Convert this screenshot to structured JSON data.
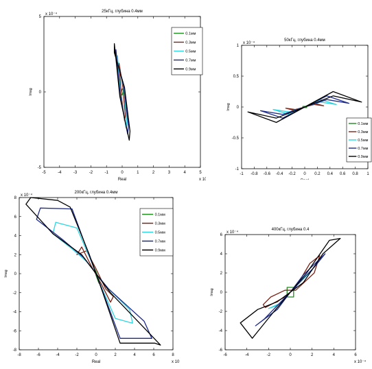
{
  "page": {
    "background": "#ffffff"
  },
  "chart_data": [
    {
      "type": "line",
      "title": "25кГц, глубина 0.4мм",
      "xlabel": "Real",
      "ylabel": "Imag",
      "x_exponent": "x 10⁻⁴",
      "y_exponent": "x 10⁻⁴",
      "xlim": [
        -5,
        5
      ],
      "ylim": [
        -5,
        5
      ],
      "xticks": [
        -5,
        -4,
        -3,
        -2,
        -1,
        0,
        1,
        2,
        3,
        4,
        5
      ],
      "yticks": [
        -5,
        0,
        5
      ],
      "legend_position": "top-right",
      "series": [
        {
          "name": "0.1мм",
          "color": "#1e8a1e",
          "x": [
            0,
            0.1,
            0,
            -0.1,
            0
          ],
          "y": [
            0.2,
            0.15,
            -0.2,
            -0.15,
            0.2
          ],
          "closed": true
        },
        {
          "name": "0.3мм",
          "color": "#7a2418",
          "x": [
            -0.15,
            0.05,
            0.2,
            0.15,
            -0.05,
            -0.2
          ],
          "y": [
            1.6,
            0.3,
            -1.6,
            -1.9,
            -0.3,
            1.9
          ],
          "closed": true
        },
        {
          "name": "0.5мм",
          "color": "#2ed4e0",
          "x": [
            -0.3,
            0.1,
            0.3,
            0.25,
            -0.1,
            -0.3
          ],
          "y": [
            2.0,
            0.3,
            -2.0,
            -2.4,
            -0.3,
            2.4
          ],
          "closed": true
        },
        {
          "name": "0.7мм",
          "color": "#1c2a8a",
          "x": [
            -0.4,
            0.12,
            0.4,
            0.35,
            -0.12,
            -0.4
          ],
          "y": [
            2.3,
            0.3,
            -2.3,
            -2.8,
            -0.3,
            2.8
          ],
          "closed": true
        },
        {
          "name": "0.9мм",
          "color": "#000000",
          "x": [
            -0.5,
            0.15,
            0.5,
            0.45,
            -0.15,
            -0.5
          ],
          "y": [
            2.6,
            0.3,
            -2.6,
            -3.2,
            -0.3,
            3.2
          ],
          "closed": true
        }
      ]
    },
    {
      "type": "line",
      "title": "50кГц, глубина 0.4мм",
      "xlabel": "Real",
      "ylabel": "Imag",
      "x_exponent": "",
      "y_exponent": "x 10⁻⁴",
      "xlim": [
        -1,
        1
      ],
      "ylim": [
        -1,
        1
      ],
      "xticks": [
        -1,
        -0.8,
        -0.6,
        -0.4,
        -0.2,
        0,
        0.2,
        0.4,
        0.6,
        0.8,
        1
      ],
      "yticks": [
        -1,
        -0.5,
        0,
        0.5,
        1
      ],
      "legend_position": "bottom-right",
      "series": [
        {
          "name": "0.1мм",
          "color": "#1e8a1e",
          "x": [
            -0.03,
            0.03,
            0.03,
            -0.03
          ],
          "y": [
            -0.01,
            -0.01,
            0.01,
            0.01
          ],
          "closed": true
        },
        {
          "name": "0.3мм",
          "color": "#7a2418",
          "x": [
            -0.3,
            -0.15,
            0,
            0.15,
            0.3,
            0.15,
            0,
            -0.15
          ],
          "y": [
            -0.02,
            -0.06,
            0,
            0.04,
            0.02,
            0.06,
            0,
            -0.04
          ],
          "closed": true
        },
        {
          "name": "0.5мм",
          "color": "#2ed4e0",
          "x": [
            -0.5,
            -0.25,
            0,
            0.25,
            0.5,
            0.25,
            0,
            -0.25
          ],
          "y": [
            -0.04,
            -0.12,
            0,
            0.08,
            0.04,
            0.12,
            0,
            -0.08
          ],
          "closed": true
        },
        {
          "name": "0.7мм",
          "color": "#1c2a8a",
          "x": [
            -0.7,
            -0.35,
            0,
            0.35,
            0.7,
            0.35,
            0,
            -0.35
          ],
          "y": [
            -0.06,
            -0.18,
            0,
            0.12,
            0.06,
            0.18,
            0,
            -0.12
          ],
          "closed": true
        },
        {
          "name": "0.9мм",
          "color": "#000000",
          "x": [
            -0.9,
            -0.45,
            0,
            0.45,
            0.9,
            0.45,
            0,
            -0.45
          ],
          "y": [
            -0.08,
            -0.25,
            0,
            0.18,
            0.08,
            0.25,
            0,
            -0.18
          ],
          "closed": true
        }
      ]
    },
    {
      "type": "line",
      "title": "200кГц, глубина 0.4мм",
      "xlabel": "Real",
      "ylabel": "Imag",
      "x_exponent": "x 10⁻⁴",
      "y_exponent": "x 10⁻⁴",
      "xlim": [
        -8,
        8
      ],
      "ylim": [
        -8,
        8
      ],
      "xticks": [
        -8,
        -6,
        -4,
        -2,
        0,
        2,
        4,
        6,
        8
      ],
      "yticks": [
        -8,
        -6,
        -4,
        -2,
        0,
        2,
        4,
        6,
        8
      ],
      "legend_position": "top-right",
      "series": [
        {
          "name": "0.1мм",
          "color": "#1e8a1e",
          "x": [
            -0.3,
            0,
            0.3,
            0.3,
            0,
            -0.3
          ],
          "y": [
            0.8,
            0.2,
            -0.6,
            -1.0,
            -0.2,
            1.0
          ],
          "closed": true
        },
        {
          "name": "0.3мм",
          "color": "#7a2418",
          "x": [
            -2,
            -1,
            0,
            1,
            1.8,
            1.5,
            0.5,
            -0.5,
            -1.5
          ],
          "y": [
            2.0,
            2.4,
            0.5,
            -1.6,
            -2.4,
            -3.0,
            -1.0,
            0.8,
            2.8
          ],
          "closed": true
        },
        {
          "name": "0.5мм",
          "color": "#2ed4e0",
          "x": [
            -4.5,
            -2.5,
            -1,
            0,
            1,
            3.5,
            3.8,
            2,
            0.5,
            -0.5,
            -2,
            -4.2
          ],
          "y": [
            4.2,
            2.6,
            1.3,
            0,
            -1.3,
            -3.8,
            -5.2,
            -4.7,
            -1.3,
            1.3,
            4.8,
            5.4
          ],
          "closed": true
        },
        {
          "name": "0.7мм",
          "color": "#1c2a8a",
          "x": [
            -6.2,
            -3.5,
            -1.3,
            0,
            1.3,
            5,
            5.8,
            2.5,
            0.6,
            -0.6,
            -2.5,
            -5.8
          ],
          "y": [
            5.7,
            3.6,
            1.7,
            0,
            -1.6,
            -5.0,
            -6.8,
            -6.8,
            -1.6,
            1.6,
            6.8,
            6.9
          ],
          "closed": true
        },
        {
          "name": "0.9мм",
          "color": "#000000",
          "x": [
            -7.3,
            -4.5,
            -1.5,
            0,
            1.5,
            5,
            6.7,
            6.1,
            2.5,
            0.7,
            -0.7,
            -2.7,
            -4.0,
            -6.8
          ],
          "y": [
            7.3,
            4.2,
            2.0,
            0,
            -2.0,
            -5.7,
            -7.5,
            -7.3,
            -7.3,
            -2.0,
            2.0,
            7.0,
            7.7,
            8.0
          ],
          "closed": true
        }
      ]
    },
    {
      "type": "line",
      "title": "400кГц, глубина 0.4",
      "xlabel": "",
      "ylabel": "Imag",
      "x_exponent": "x 10⁻⁴",
      "y_exponent": "x 10⁻⁴",
      "xlim": [
        -6,
        6
      ],
      "ylim": [
        -6,
        6
      ],
      "xticks": [
        -6,
        -4,
        -2,
        0,
        2,
        4,
        6
      ],
      "yticks": [
        -6,
        -4,
        -2,
        0,
        2,
        4,
        6
      ],
      "legend_position": "",
      "series": [
        {
          "name": "",
          "color": "#1e8a1e",
          "x": [
            -0.3,
            0.3,
            0.3,
            -0.3
          ],
          "y": [
            -0.5,
            -0.5,
            0.5,
            0.5
          ],
          "closed": true
        },
        {
          "name": "",
          "color": "#7a2418",
          "x": [
            -2.5,
            -1.8,
            -0.5,
            0.5,
            2.2,
            2.7,
            1.8,
            0.5,
            -0.5,
            -2.3
          ],
          "y": [
            -1.3,
            -0.5,
            0.2,
            0.2,
            2.0,
            3.8,
            3.0,
            0.5,
            -0.5,
            -1.6
          ],
          "closed": true
        },
        {
          "name": "",
          "color": "#2ed4e0",
          "x": [
            -2,
            -0.8,
            0,
            0.8,
            2,
            1.2,
            0,
            -1.2
          ],
          "y": [
            -1.7,
            -1.1,
            0,
            1.1,
            2.3,
            1.4,
            0,
            -1.4
          ],
          "closed": true
        },
        {
          "name": "",
          "color": "#1c2a8a",
          "x": [
            -3.2,
            -1.2,
            0,
            1.2,
            3.2,
            2.2,
            0,
            -2.4
          ],
          "y": [
            -3.5,
            -1.8,
            0,
            1.8,
            4.0,
            2.6,
            0,
            -2.8
          ],
          "closed": true
        },
        {
          "name": "",
          "color": "#000000",
          "x": [
            -4.6,
            -3.0,
            -1.2,
            0,
            1.2,
            3.0,
            4.6,
            3.6,
            1.5,
            0,
            -1.5,
            -3.5
          ],
          "y": [
            -3.2,
            -1.8,
            -1.0,
            0,
            1.0,
            4.0,
            5.6,
            5.4,
            2.0,
            0,
            -2.0,
            -4.8
          ],
          "closed": true
        }
      ]
    }
  ]
}
